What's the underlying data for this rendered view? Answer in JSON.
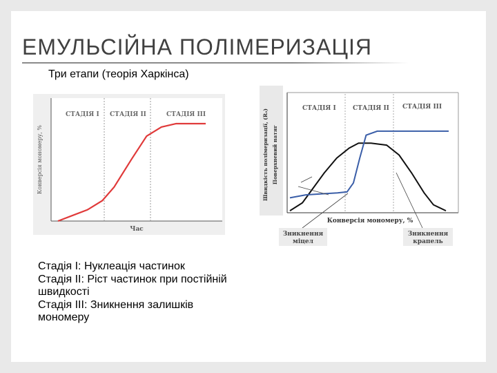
{
  "slide": {
    "title": "ЕМУЛЬСІЙНА ПОЛІМЕРИЗАЦІЯ",
    "subtitle": "Три етапи (теорія Харкінса)"
  },
  "left_figure": {
    "ylabel": "Конверсія мономеру, %",
    "xlabel": "Час",
    "stages": [
      "СТАДІЯ І",
      "СТАДІЯ ІІ",
      "СТАДІЯ ІІІ"
    ],
    "curve_color": "#e03a3a"
  },
  "right_figure": {
    "ylabel_line1": "Швидкість полімеризації, (Rₔ)",
    "ylabel_line2": "Поверхневий натяг",
    "xlabel": "Конверсія мономеру, %",
    "stages": [
      "СТАДІЯ І",
      "СТАДІЯ ІІ",
      "СТАДІЯ ІІІ"
    ],
    "annot_left_line1": "Зникнення",
    "annot_left_line2": "міцел",
    "annot_right_line1": "Зникнення",
    "annot_right_line2": "крапель",
    "rate_color": "#111111",
    "tension_color": "#3a5ea8"
  },
  "chart_data": [
    {
      "type": "line",
      "title": "",
      "xlabel": "Час",
      "ylabel": "Конверсія мономеру, %",
      "stages": [
        "СТАДІЯ І",
        "СТАДІЯ ІІ",
        "СТАДІЯ ІІІ"
      ],
      "series": [
        {
          "x": [
            0,
            10,
            20,
            30,
            38,
            50,
            60,
            70,
            80,
            90,
            100
          ],
          "values": [
            0,
            5,
            10,
            18,
            30,
            55,
            75,
            83,
            86,
            86,
            86
          ]
        }
      ]
    },
    {
      "type": "line",
      "title": "",
      "xlabel": "Конверсія мономеру, %",
      "ylabel": "Швидкість полімеризації, (Rₔ) / Поверхневий натяг",
      "stages": [
        "СТАДІЯ І",
        "СТАДІЯ ІІ",
        "СТАДІЯ ІІІ"
      ],
      "series": [
        {
          "x": [
            0,
            8,
            15,
            22,
            30,
            38,
            44,
            52,
            62,
            70,
            78,
            86,
            92,
            100
          ],
          "values": [
            2,
            10,
            25,
            40,
            55,
            65,
            70,
            70,
            68,
            58,
            40,
            20,
            8,
            2
          ]
        },
        {
          "x": [
            0,
            10,
            20,
            30,
            36,
            40,
            44,
            48,
            55,
            70,
            85,
            100
          ],
          "values": [
            15,
            18,
            19,
            20,
            21,
            30,
            55,
            78,
            82,
            82,
            82,
            82
          ]
        }
      ]
    }
  ]
}
